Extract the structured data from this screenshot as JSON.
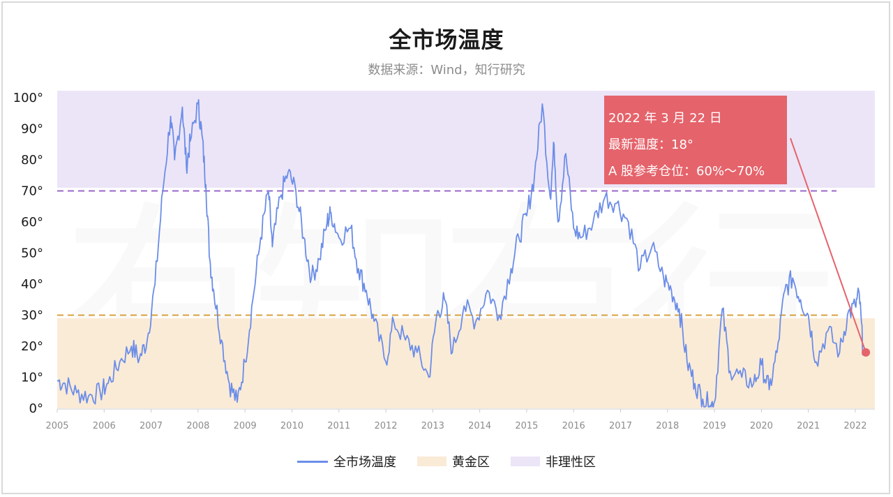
{
  "chart_data": {
    "type": "line",
    "title": "全市场温度",
    "subtitle": "数据来源：Wind，知行研究",
    "watermark": "有知有行",
    "x_range": [
      "2005-01",
      "2022-05"
    ],
    "x_ticks": [
      "2005",
      "2006",
      "2007",
      "2008",
      "2009",
      "2010",
      "2011",
      "2012",
      "2013",
      "2014",
      "2015",
      "2016",
      "2017",
      "2018",
      "2019",
      "2020",
      "2021",
      "2022"
    ],
    "ylim": [
      0,
      100
    ],
    "y_ticks": [
      "0°",
      "10°",
      "20°",
      "30°",
      "40°",
      "50°",
      "60°",
      "70°",
      "80°",
      "90°",
      "100°"
    ],
    "grid": false,
    "legend_position": "bottom",
    "colors": {
      "line": "#6b8de8",
      "golden_zone": "#faebd7",
      "irrational_zone": "#ece5f7",
      "golden_threshold": "#d9a13c",
      "irrational_threshold": "#9a66c9",
      "marker": "#e5636b"
    },
    "zones": [
      {
        "name": "黄金区",
        "from": 0,
        "to": 29
      },
      {
        "name": "非理性区",
        "from": 71,
        "to": 100
      }
    ],
    "thresholds": [
      {
        "value": 30,
        "style": "dashed",
        "color": "#d9a13c"
      },
      {
        "value": 70,
        "style": "dashed",
        "color": "#9a66c9"
      }
    ],
    "series": [
      {
        "name": "全市场温度",
        "points": [
          [
            "2005-01",
            9
          ],
          [
            "2005-03",
            8
          ],
          [
            "2005-06",
            5
          ],
          [
            "2005-09",
            4
          ],
          [
            "2005-12",
            5
          ],
          [
            "2006-02",
            8
          ],
          [
            "2006-05",
            15
          ],
          [
            "2006-08",
            20
          ],
          [
            "2006-10",
            16
          ],
          [
            "2006-12",
            22
          ],
          [
            "2007-02",
            40
          ],
          [
            "2007-04",
            70
          ],
          [
            "2007-06",
            94
          ],
          [
            "2007-07",
            80
          ],
          [
            "2007-09",
            97
          ],
          [
            "2007-10",
            78
          ],
          [
            "2007-11",
            86
          ],
          [
            "2008-01",
            98
          ],
          [
            "2008-02",
            88
          ],
          [
            "2008-03",
            72
          ],
          [
            "2008-04",
            48
          ],
          [
            "2008-05",
            38
          ],
          [
            "2008-07",
            22
          ],
          [
            "2008-09",
            8
          ],
          [
            "2008-11",
            2
          ],
          [
            "2009-01",
            15
          ],
          [
            "2009-03",
            35
          ],
          [
            "2009-05",
            55
          ],
          [
            "2009-07",
            70
          ],
          [
            "2009-08",
            52
          ],
          [
            "2009-10",
            68
          ],
          [
            "2009-12",
            76
          ],
          [
            "2010-02",
            70
          ],
          [
            "2010-04",
            55
          ],
          [
            "2010-06",
            42
          ],
          [
            "2010-08",
            48
          ],
          [
            "2010-10",
            60
          ],
          [
            "2010-11",
            63
          ],
          [
            "2011-01",
            55
          ],
          [
            "2011-04",
            58
          ],
          [
            "2011-06",
            45
          ],
          [
            "2011-08",
            38
          ],
          [
            "2011-10",
            28
          ],
          [
            "2012-01",
            15
          ],
          [
            "2012-03",
            28
          ],
          [
            "2012-06",
            22
          ],
          [
            "2012-09",
            18
          ],
          [
            "2012-12",
            10
          ],
          [
            "2013-02",
            30
          ],
          [
            "2013-04",
            35
          ],
          [
            "2013-06",
            18
          ],
          [
            "2013-09",
            33
          ],
          [
            "2013-12",
            28
          ],
          [
            "2014-03",
            38
          ],
          [
            "2014-06",
            30
          ],
          [
            "2014-09",
            45
          ],
          [
            "2014-11",
            55
          ],
          [
            "2015-01",
            62
          ],
          [
            "2015-03",
            75
          ],
          [
            "2015-05",
            98
          ],
          [
            "2015-07",
            68
          ],
          [
            "2015-08",
            85
          ],
          [
            "2015-09",
            60
          ],
          [
            "2015-11",
            82
          ],
          [
            "2016-01",
            58
          ],
          [
            "2016-03",
            55
          ],
          [
            "2016-06",
            60
          ],
          [
            "2016-09",
            68
          ],
          [
            "2016-12",
            66
          ],
          [
            "2017-03",
            60
          ],
          [
            "2017-06",
            45
          ],
          [
            "2017-09",
            52
          ],
          [
            "2017-12",
            42
          ],
          [
            "2018-02",
            38
          ],
          [
            "2018-04",
            32
          ],
          [
            "2018-06",
            15
          ],
          [
            "2018-08",
            8
          ],
          [
            "2018-10",
            3
          ],
          [
            "2018-12",
            1
          ],
          [
            "2019-01",
            2
          ],
          [
            "2019-03",
            32
          ],
          [
            "2019-05",
            12
          ],
          [
            "2019-08",
            10
          ],
          [
            "2019-11",
            8
          ],
          [
            "2020-01",
            14
          ],
          [
            "2020-03",
            6
          ],
          [
            "2020-05",
            18
          ],
          [
            "2020-07",
            38
          ],
          [
            "2020-09",
            42
          ],
          [
            "2020-11",
            35
          ],
          [
            "2021-01",
            30
          ],
          [
            "2021-03",
            15
          ],
          [
            "2021-06",
            25
          ],
          [
            "2021-09",
            18
          ],
          [
            "2021-11",
            30
          ],
          [
            "2022-01",
            33
          ],
          [
            "2022-02",
            37
          ],
          [
            "2022-03",
            18
          ]
        ]
      }
    ],
    "annotation": {
      "date": "2022-03-22",
      "value": 18,
      "lines": [
        "2022 年 3 月 22 日",
        "最新温度：18°",
        "A 股参考仓位：60%～70%"
      ]
    },
    "legend": [
      {
        "label": "全市场温度",
        "kind": "line",
        "color": "#6b8de8"
      },
      {
        "label": "黄金区",
        "kind": "box",
        "color": "#faebd7"
      },
      {
        "label": "非理性区",
        "kind": "box",
        "color": "#ece5f7"
      }
    ]
  }
}
